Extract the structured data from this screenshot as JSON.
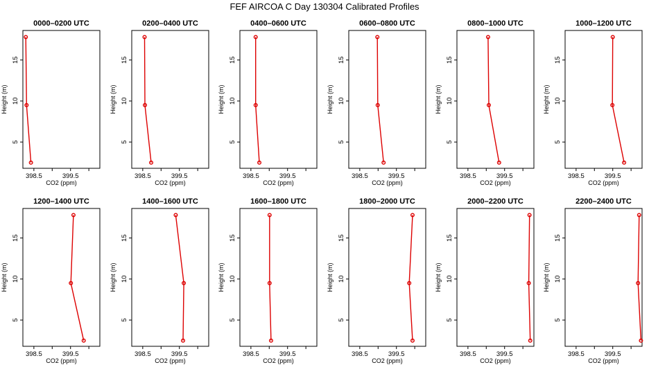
{
  "title": "FEF AIRCOA C  Day 130304  Calibrated Profiles",
  "colors": {
    "profile": "#dd0000",
    "axis": "#000000"
  },
  "chart_data": {
    "type": "line",
    "xlabel": "CO2 (ppm)",
    "ylabel": "Height (m)",
    "xlim": [
      398.2,
      400.3
    ],
    "ylim": [
      1.8,
      18.6
    ],
    "xticks": [
      398.5,
      399.0,
      399.5,
      400.0
    ],
    "xtick_labels": [
      "398.5",
      "",
      "399.5",
      ""
    ],
    "yticks": [
      5,
      10,
      15
    ],
    "ytick_labels": [
      "5",
      "10",
      "15"
    ],
    "panels": [
      {
        "label": "0000–0200 UTC",
        "points": [
          {
            "co2": 398.28,
            "height": 17.8
          },
          {
            "co2": 398.3,
            "height": 9.5
          },
          {
            "co2": 398.42,
            "height": 2.5
          }
        ]
      },
      {
        "label": "0200–0400 UTC",
        "points": [
          {
            "co2": 398.55,
            "height": 17.8
          },
          {
            "co2": 398.56,
            "height": 9.5
          },
          {
            "co2": 398.73,
            "height": 2.5
          }
        ]
      },
      {
        "label": "0400–0600 UTC",
        "points": [
          {
            "co2": 398.63,
            "height": 17.8
          },
          {
            "co2": 398.63,
            "height": 9.5
          },
          {
            "co2": 398.73,
            "height": 2.5
          }
        ]
      },
      {
        "label": "0600–0800 UTC",
        "points": [
          {
            "co2": 398.98,
            "height": 17.8
          },
          {
            "co2": 398.99,
            "height": 9.5
          },
          {
            "co2": 399.15,
            "height": 2.5
          }
        ]
      },
      {
        "label": "0800–1000 UTC",
        "points": [
          {
            "co2": 399.05,
            "height": 17.8
          },
          {
            "co2": 399.07,
            "height": 9.5
          },
          {
            "co2": 399.35,
            "height": 2.5
          }
        ]
      },
      {
        "label": "1000–1200 UTC",
        "points": [
          {
            "co2": 399.5,
            "height": 17.8
          },
          {
            "co2": 399.49,
            "height": 9.5
          },
          {
            "co2": 399.81,
            "height": 2.5
          }
        ]
      },
      {
        "label": "1200–1400 UTC",
        "points": [
          {
            "co2": 399.58,
            "height": 17.8
          },
          {
            "co2": 399.51,
            "height": 9.5
          },
          {
            "co2": 399.86,
            "height": 2.5
          }
        ]
      },
      {
        "label": "1400–1600 UTC",
        "points": [
          {
            "co2": 399.4,
            "height": 17.8
          },
          {
            "co2": 399.62,
            "height": 9.5
          },
          {
            "co2": 399.6,
            "height": 2.5
          }
        ]
      },
      {
        "label": "1600–1800 UTC",
        "points": [
          {
            "co2": 399.01,
            "height": 17.8
          },
          {
            "co2": 399.01,
            "height": 9.5
          },
          {
            "co2": 399.05,
            "height": 2.5
          }
        ]
      },
      {
        "label": "1800–2000 UTC",
        "points": [
          {
            "co2": 399.94,
            "height": 17.8
          },
          {
            "co2": 399.85,
            "height": 9.5
          },
          {
            "co2": 399.94,
            "height": 2.5
          }
        ]
      },
      {
        "label": "2000–2200 UTC",
        "points": [
          {
            "co2": 400.18,
            "height": 17.8
          },
          {
            "co2": 400.16,
            "height": 9.5
          },
          {
            "co2": 400.2,
            "height": 2.5
          }
        ]
      },
      {
        "label": "2200–2400 UTC",
        "points": [
          {
            "co2": 400.22,
            "height": 17.8
          },
          {
            "co2": 400.19,
            "height": 9.5
          },
          {
            "co2": 400.27,
            "height": 2.5
          }
        ]
      }
    ]
  }
}
